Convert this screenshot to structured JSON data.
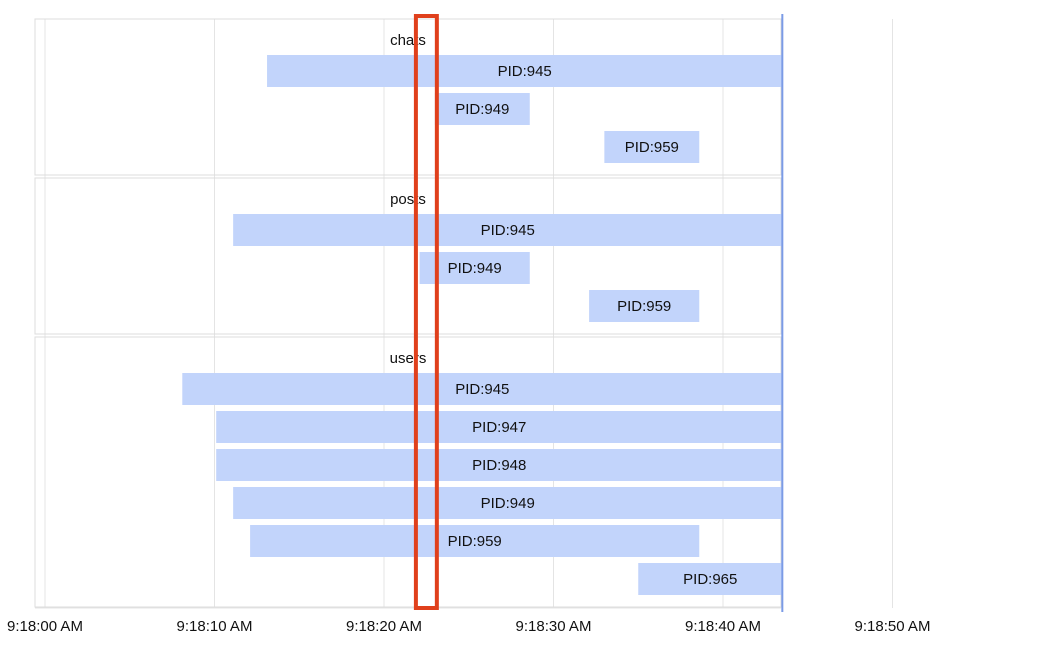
{
  "chart_data": {
    "type": "timeline",
    "x_axis": {
      "ticks": [
        "9:18:00 AM",
        "9:18:10 AM",
        "9:18:20 AM",
        "9:18:30 AM",
        "9:18:40 AM",
        "9:18:50 AM"
      ],
      "tick_seconds": [
        0,
        10,
        20,
        30,
        40,
        50
      ],
      "range_seconds": [
        0,
        53.5
      ],
      "grid": true
    },
    "now_marker_seconds": 43.5,
    "highlight_window_seconds": [
      22.0,
      23.0
    ],
    "colors": {
      "bar": "#c2d4fb",
      "now_line": "#7b9be6",
      "highlight": "#e0401c",
      "grid": "#e4e4e4",
      "panel_border": "#dddddd"
    },
    "groups": [
      {
        "title": "chats",
        "bars": [
          {
            "label": "PID:945",
            "start": 13.1,
            "end": 43.5
          },
          {
            "label": "PID:949",
            "start": 23.0,
            "end": 28.6
          },
          {
            "label": "PID:959",
            "start": 33.0,
            "end": 38.6
          }
        ]
      },
      {
        "title": "posts",
        "bars": [
          {
            "label": "PID:945",
            "start": 11.1,
            "end": 43.5
          },
          {
            "label": "PID:949",
            "start": 22.1,
            "end": 28.6
          },
          {
            "label": "PID:959",
            "start": 32.1,
            "end": 38.6
          }
        ]
      },
      {
        "title": "users",
        "bars": [
          {
            "label": "PID:945",
            "start": 8.1,
            "end": 43.5
          },
          {
            "label": "PID:947",
            "start": 10.1,
            "end": 43.5
          },
          {
            "label": "PID:948",
            "start": 10.1,
            "end": 43.5
          },
          {
            "label": "PID:949",
            "start": 11.1,
            "end": 43.5
          },
          {
            "label": "PID:959",
            "start": 12.1,
            "end": 38.6
          },
          {
            "label": "PID:965",
            "start": 35.0,
            "end": 43.5
          }
        ]
      }
    ]
  }
}
